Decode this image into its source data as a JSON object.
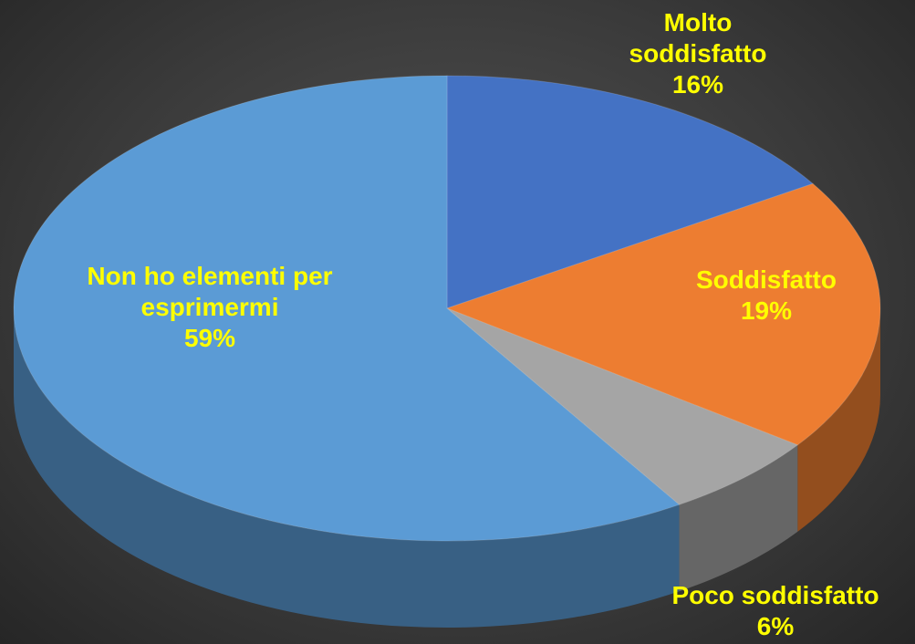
{
  "chart_data": {
    "type": "pie",
    "categories": [
      "Molto soddisfatto",
      "Soddisfatto",
      "Poco soddisfatto",
      "Non ho elementi per esprimermi"
    ],
    "values": [
      16,
      19,
      6,
      59
    ],
    "value_labels": [
      "16%",
      "19%",
      "6%",
      "59%"
    ],
    "colors": [
      "#4472c4",
      "#ed7d31",
      "#a5a5a5",
      "#5b9bd5"
    ]
  }
}
